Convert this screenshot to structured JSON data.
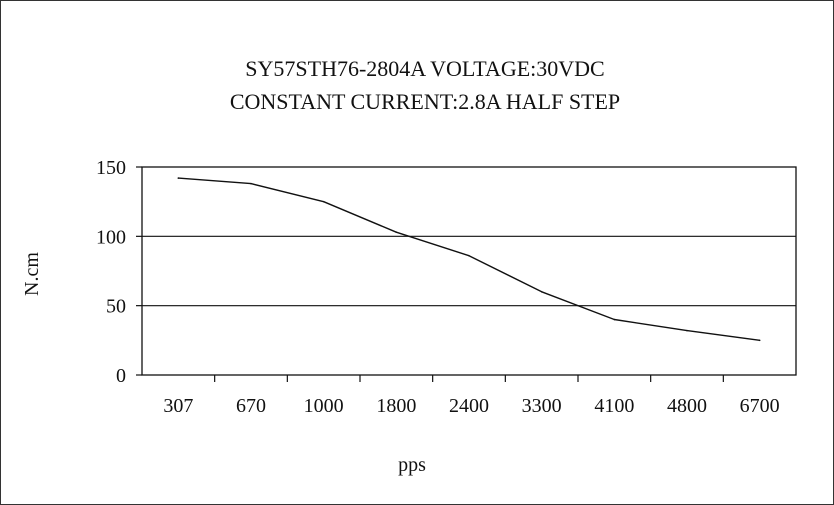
{
  "chart_data": {
    "type": "line",
    "title": "SY57STH76-2804A  VOLTAGE:30VDC",
    "subtitle": "CONSTANT  CURRENT:2.8A HALF STEP",
    "xlabel": "pps",
    "ylabel": "N.cm",
    "categories": [
      "307",
      "670",
      "1000",
      "1800",
      "2400",
      "3300",
      "4100",
      "4800",
      "6700"
    ],
    "y_ticks": [
      "150",
      "100",
      "50",
      "0"
    ],
    "ylim": [
      0,
      150
    ],
    "grid": "horizontal",
    "series": [
      {
        "x": [
          "307",
          "670",
          "1000",
          "1800",
          "2400",
          "3300",
          "4100",
          "4800",
          "6700"
        ],
        "values": [
          142,
          138,
          125,
          103,
          86,
          60,
          40,
          32,
          25
        ]
      }
    ],
    "colors": {
      "line": "#111111",
      "grid": "#111111",
      "frame": "#333333"
    }
  }
}
